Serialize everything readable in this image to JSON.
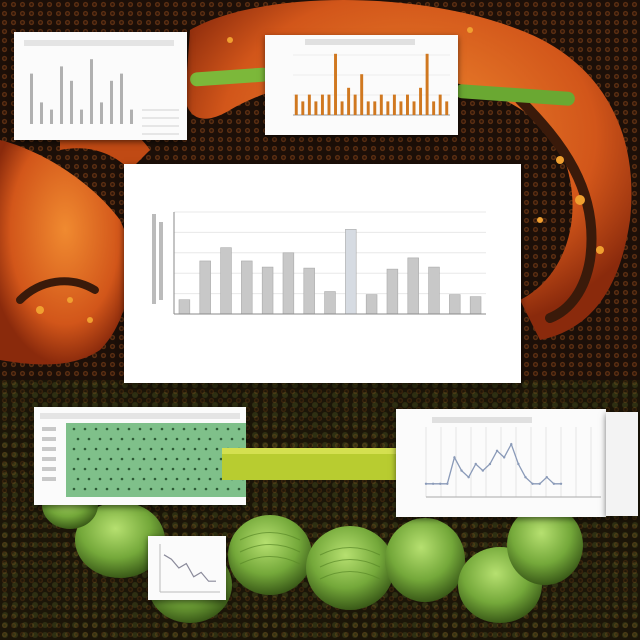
{
  "colors": {
    "background": "#1c0f08",
    "orange_body": "#d2561a",
    "orange_highlight": "#f0a030",
    "green_body": "#74a83a",
    "green_highlight": "#a6d760",
    "connector_green": "#b8cc30",
    "bar_fill": "#c8c8c8",
    "bar_fill_light": "#d6dbe2",
    "heatmap_green": "#7fc08a",
    "line_color": "#8a9ab8",
    "accent_bar": "#d07820"
  },
  "main_chart": {
    "title_line_1": "",
    "title_line_2": "",
    "x_axis_label": "",
    "categories": [
      "",
      "",
      "",
      "",
      "",
      "",
      "",
      "",
      "",
      "",
      "",
      "",
      "",
      "",
      "",
      ""
    ]
  },
  "chart_data": [
    {
      "type": "bar",
      "title": "",
      "subtitle": "",
      "xlabel": "",
      "ylabel": "",
      "grid": true,
      "ylim": [
        0,
        10
      ],
      "values": [
        1.4,
        5.2,
        6.5,
        5.2,
        4.6,
        6.0,
        4.5,
        2.2,
        8.3,
        1.9,
        4.4,
        5.5,
        4.6,
        1.9,
        1.7
      ]
    },
    {
      "type": "bar",
      "title": "",
      "grid": true,
      "ylim": [
        0,
        10
      ],
      "values": [
        3,
        2,
        3,
        2,
        3,
        3,
        9,
        2,
        4,
        3,
        6,
        2,
        2,
        3,
        2,
        3,
        2,
        3,
        2,
        4,
        9,
        2,
        3,
        2
      ]
    },
    {
      "type": "line",
      "title": "",
      "grid": true,
      "ylim": [
        0,
        10
      ],
      "values": [
        2,
        2,
        2,
        2,
        6,
        4,
        3,
        5,
        4,
        5,
        7,
        6,
        8,
        5,
        3,
        2,
        2,
        3,
        2,
        2
      ]
    },
    {
      "type": "line",
      "title": "",
      "ylim": [
        0,
        10
      ],
      "values": [
        8,
        7,
        5,
        6,
        3,
        4,
        2,
        2
      ]
    },
    {
      "type": "bar",
      "title": "",
      "ylim": [
        0,
        10
      ],
      "values": [
        7,
        3,
        2,
        8,
        6,
        2,
        9,
        3,
        6,
        7,
        2
      ]
    },
    {
      "type": "heatmap",
      "title": ""
    }
  ]
}
